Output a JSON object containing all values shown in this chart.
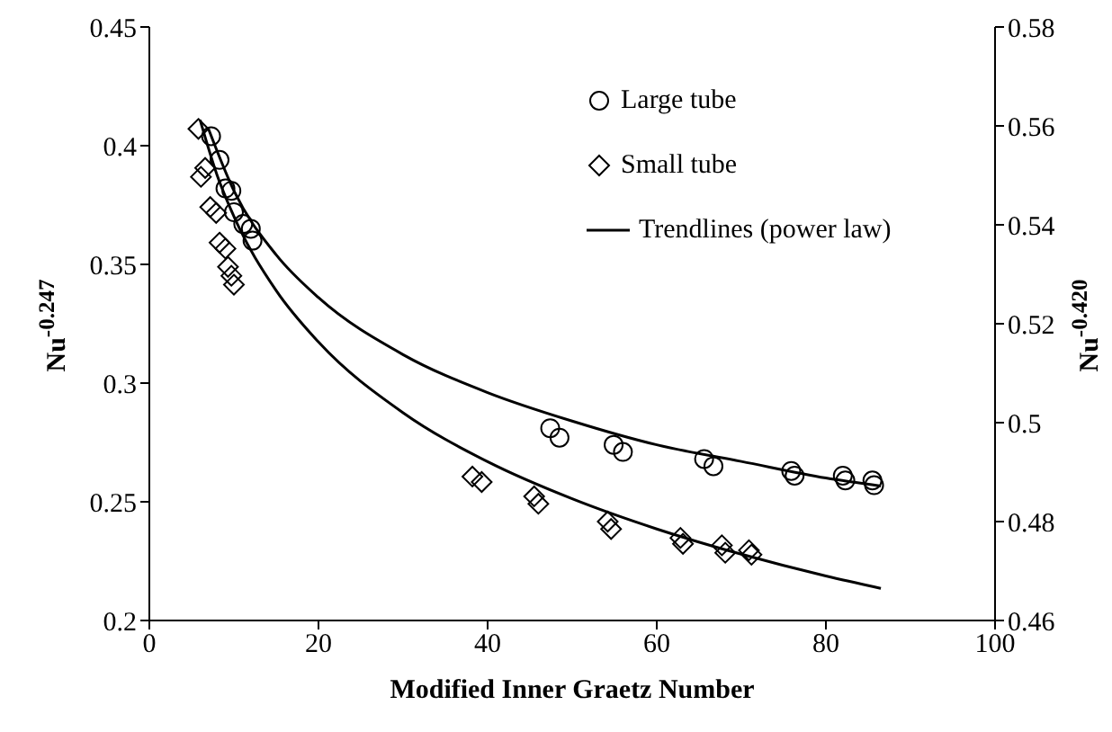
{
  "chart_data": {
    "type": "scatter",
    "xlabel": "Modified Inner Graetz Number",
    "ylabel": "Nu$^{-0.247}$",
    "y2label": "Nu$^{-0.420}$",
    "xlim": [
      0,
      100
    ],
    "xticks": [
      0,
      20,
      40,
      60,
      80,
      100
    ],
    "ylim": [
      0.2,
      0.45
    ],
    "yticks": [
      0.2,
      0.25,
      0.3,
      0.35,
      0.4,
      0.45
    ],
    "y2lim": [
      0.46,
      0.58
    ],
    "y2ticks": [
      0.46,
      0.48,
      0.5,
      0.52,
      0.54,
      0.56,
      0.58
    ],
    "grid": false,
    "legend": "top right",
    "series": [
      {
        "name": "Large tube",
        "marker": "circle",
        "color": "#000000",
        "x": [
          7.3,
          8.3,
          9.0,
          9.7,
          10.0,
          11.1,
          12.0,
          12.2,
          47.4,
          48.5,
          54.9,
          56.0,
          65.6,
          66.7,
          75.9,
          76.3,
          82.0,
          82.3,
          85.5,
          85.7
        ],
        "values": [
          0.404,
          0.394,
          0.382,
          0.381,
          0.372,
          0.367,
          0.365,
          0.36,
          0.281,
          0.277,
          0.274,
          0.271,
          0.268,
          0.265,
          0.263,
          0.261,
          0.261,
          0.259,
          0.259,
          0.257
        ]
      },
      {
        "name": "Small tube",
        "marker": "diamond",
        "axis": "y2",
        "color": "#000000",
        "x": [
          5.8,
          6.1,
          6.6,
          7.2,
          7.9,
          8.3,
          9.0,
          9.3,
          9.7,
          10.0,
          38.2,
          39.3,
          45.5,
          46.0,
          54.2,
          54.6,
          62.8,
          63.1,
          67.7,
          68.1,
          70.9,
          71.2
        ],
        "values": [
          0.5594,
          0.5497,
          0.5515,
          0.5436,
          0.5424,
          0.5364,
          0.5352,
          0.5315,
          0.5297,
          0.5279,
          0.4891,
          0.488,
          0.4851,
          0.4836,
          0.48,
          0.4785,
          0.4767,
          0.4755,
          0.4752,
          0.4737,
          0.4742,
          0.4733
        ]
      },
      {
        "name": "Trendlines (power law)",
        "type": "line",
        "marker": "none",
        "color": "#000000",
        "x": [
          7,
          10,
          15,
          20,
          30,
          40,
          50,
          60,
          70,
          80,
          86.5
        ],
        "values": [
          0.407,
          0.381,
          0.354,
          0.336,
          0.312,
          0.296,
          0.284,
          0.274,
          0.267,
          0.26,
          0.2566
        ]
      },
      {
        "type": "line",
        "marker": "none",
        "axis": "y2",
        "color": "#000000",
        "x": [
          6,
          8,
          10,
          15,
          20,
          30,
          40,
          50,
          60,
          70,
          80,
          86.5
        ],
        "values": [
          0.5612,
          0.5501,
          0.5417,
          0.5267,
          0.5163,
          0.502,
          0.4921,
          0.4846,
          0.4785,
          0.4734,
          0.469,
          0.4665
        ]
      }
    ]
  }
}
